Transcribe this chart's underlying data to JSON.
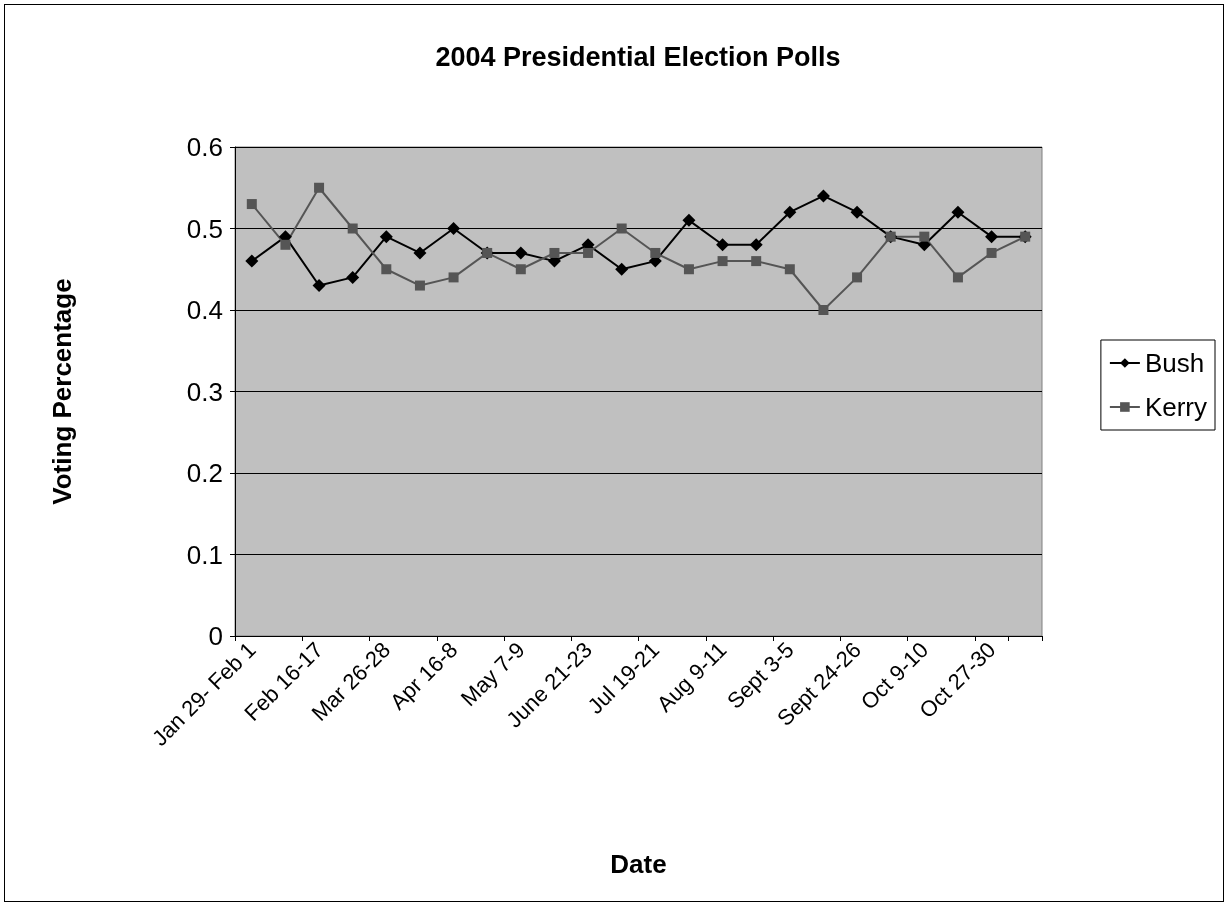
{
  "chart_data": {
    "type": "line",
    "title": "2004 Presidential Election Polls",
    "xlabel": "Date",
    "ylabel": "Voting Percentage",
    "categories": [
      "Jan 29- Feb 1",
      null,
      "Feb 16-17",
      null,
      "Mar 26-28",
      null,
      "Apr 16-8",
      null,
      "May 7-9",
      null,
      "June 21-23",
      null,
      "Jul 19-21",
      null,
      "Aug 9-11",
      null,
      "Sept 3-5",
      null,
      "Sept 24-26",
      null,
      "Oct 9-10",
      null,
      "Oct 27-30",
      null
    ],
    "series": [
      {
        "name": "Bush",
        "color": "#000000",
        "marker": "diamond",
        "values": [
          0.46,
          0.49,
          0.43,
          0.44,
          0.49,
          0.47,
          0.5,
          0.47,
          0.47,
          0.46,
          0.48,
          0.45,
          0.46,
          0.51,
          0.48,
          0.48,
          0.52,
          0.54,
          0.52,
          0.49,
          0.48,
          0.52,
          0.49,
          0.49
        ]
      },
      {
        "name": "Kerry",
        "color": "#555555",
        "marker": "square",
        "values": [
          0.53,
          0.48,
          0.55,
          0.5,
          0.45,
          0.43,
          0.44,
          0.47,
          0.45,
          0.47,
          0.47,
          0.5,
          0.47,
          0.45,
          0.46,
          0.46,
          0.45,
          0.4,
          0.44,
          0.49,
          0.49,
          0.44,
          0.47,
          0.49
        ]
      }
    ],
    "ylim": [
      0,
      0.6
    ],
    "yticks": [
      0,
      0.1,
      0.2,
      0.3,
      0.4,
      0.5,
      0.6
    ],
    "grid": "y",
    "legend": "right",
    "line_style": "solid"
  }
}
